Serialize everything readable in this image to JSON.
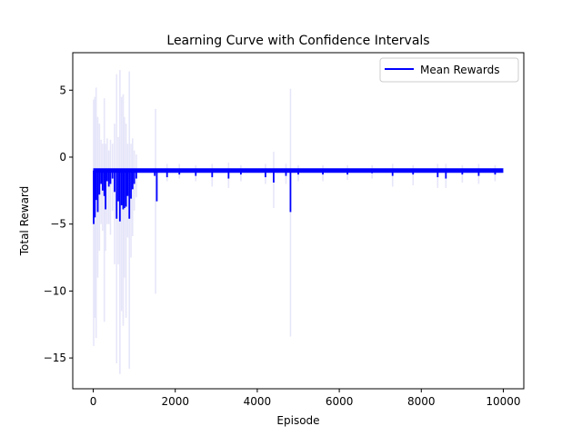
{
  "chart_data": {
    "type": "line",
    "title": "Learning Curve with Confidence Intervals",
    "xlabel": "Episode",
    "ylabel": "Total Reward",
    "xlim": [
      -500,
      10500
    ],
    "ylim": [
      -17.3,
      7.8
    ],
    "xticks": [
      0,
      2000,
      4000,
      6000,
      8000,
      10000
    ],
    "yticks": [
      -15,
      -10,
      -5,
      0,
      5
    ],
    "grid": false,
    "legend_position": "top-right",
    "series": [
      {
        "name": "Mean Rewards",
        "color": "#0000ff",
        "baseline": -1.0,
        "x_range": [
          0,
          10000
        ],
        "dips": [
          [
            10,
            -5.0
          ],
          [
            40,
            -4.5
          ],
          [
            70,
            -3.2
          ],
          [
            110,
            -4.1
          ],
          [
            150,
            -2.8
          ],
          [
            190,
            -2.0
          ],
          [
            230,
            -2.5
          ],
          [
            270,
            -2.9
          ],
          [
            300,
            -3.9
          ],
          [
            340,
            -1.8
          ],
          [
            380,
            -2.2
          ],
          [
            420,
            -2.0
          ],
          [
            470,
            -1.6
          ],
          [
            520,
            -2.6
          ],
          [
            570,
            -4.6
          ],
          [
            610,
            -3.3
          ],
          [
            650,
            -4.8
          ],
          [
            690,
            -3.6
          ],
          [
            730,
            -3.9
          ],
          [
            760,
            -3.8
          ],
          [
            800,
            -3.7
          ],
          [
            840,
            -2.9
          ],
          [
            880,
            -4.6
          ],
          [
            920,
            -3.1
          ],
          [
            960,
            -2.4
          ],
          [
            1000,
            -2.0
          ],
          [
            1050,
            -1.6
          ],
          [
            1500,
            -1.4
          ],
          [
            1550,
            -3.3
          ],
          [
            1800,
            -1.5
          ],
          [
            2100,
            -1.3
          ],
          [
            2500,
            -1.4
          ],
          [
            2900,
            -1.5
          ],
          [
            3300,
            -1.6
          ],
          [
            3600,
            -1.3
          ],
          [
            4200,
            -1.5
          ],
          [
            4400,
            -1.9
          ],
          [
            4700,
            -1.4
          ],
          [
            4810,
            -4.1
          ],
          [
            5000,
            -1.3
          ],
          [
            5600,
            -1.3
          ],
          [
            6200,
            -1.3
          ],
          [
            6800,
            -1.2
          ],
          [
            7300,
            -1.4
          ],
          [
            7800,
            -1.3
          ],
          [
            8400,
            -1.5
          ],
          [
            8600,
            -1.6
          ],
          [
            9000,
            -1.3
          ],
          [
            9400,
            -1.4
          ],
          [
            9800,
            -1.3
          ]
        ]
      }
    ],
    "confidence_interval": {
      "color": "#e6e6fa",
      "bounds": [
        [
          10,
          4.3,
          -14.1
        ],
        [
          40,
          4.5,
          -12.0
        ],
        [
          70,
          5.2,
          -13.5
        ],
        [
          110,
          3.0,
          -9.0
        ],
        [
          150,
          2.5,
          -7.0
        ],
        [
          190,
          1.3,
          -5.0
        ],
        [
          230,
          1.0,
          -5.5
        ],
        [
          270,
          4.4,
          -12.3
        ],
        [
          300,
          1.0,
          -7.0
        ],
        [
          340,
          1.4,
          -5.0
        ],
        [
          380,
          0.5,
          -5.0
        ],
        [
          420,
          1.3,
          -5.8
        ],
        [
          470,
          1.0,
          -4.0
        ],
        [
          520,
          2.5,
          -8.0
        ],
        [
          570,
          6.2,
          -15.4
        ],
        [
          610,
          1.5,
          -8.0
        ],
        [
          650,
          6.5,
          -16.2
        ],
        [
          690,
          4.5,
          -11.5
        ],
        [
          730,
          4.7,
          -12.6
        ],
        [
          760,
          3.0,
          -9.0
        ],
        [
          800,
          2.5,
          -12.0
        ],
        [
          840,
          1.0,
          -6.0
        ],
        [
          880,
          6.4,
          -15.8
        ],
        [
          920,
          1.0,
          -7.5
        ],
        [
          960,
          1.4,
          -5.9
        ],
        [
          1000,
          0.5,
          -4.0
        ],
        [
          1050,
          0.2,
          -3.0
        ],
        [
          1520,
          3.6,
          -10.2
        ],
        [
          1800,
          -0.5,
          -1.8
        ],
        [
          2100,
          -0.5,
          -1.6
        ],
        [
          2500,
          -0.6,
          -1.8
        ],
        [
          2900,
          -0.5,
          -2.2
        ],
        [
          3300,
          -0.4,
          -2.3
        ],
        [
          3600,
          -0.6,
          -1.8
        ],
        [
          4200,
          -0.5,
          -2.0
        ],
        [
          4400,
          0.4,
          -3.8
        ],
        [
          4700,
          -0.5,
          -2.0
        ],
        [
          4810,
          5.1,
          -13.4
        ],
        [
          5000,
          -0.6,
          -1.8
        ],
        [
          5600,
          -0.6,
          -1.8
        ],
        [
          6200,
          -0.6,
          -1.7
        ],
        [
          6800,
          -0.6,
          -1.6
        ],
        [
          7300,
          -0.5,
          -2.2
        ],
        [
          7800,
          -0.6,
          -2.1
        ],
        [
          8400,
          -0.5,
          -2.3
        ],
        [
          8600,
          -0.5,
          -2.3
        ],
        [
          9000,
          -0.6,
          -1.9
        ],
        [
          9400,
          -0.5,
          -2.0
        ],
        [
          9800,
          -0.6,
          -1.8
        ]
      ]
    }
  }
}
